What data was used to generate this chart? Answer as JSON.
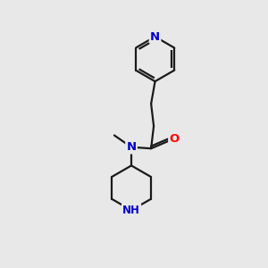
{
  "bg_color": "#e8e8e8",
  "bond_color": "#1a1a1a",
  "N_color": "#0000cc",
  "O_color": "#ff0000",
  "line_width": 1.6,
  "font_size": 8.5,
  "figsize": [
    3.0,
    3.0
  ],
  "dpi": 100,
  "xlim": [
    0,
    10
  ],
  "ylim": [
    0,
    10
  ]
}
